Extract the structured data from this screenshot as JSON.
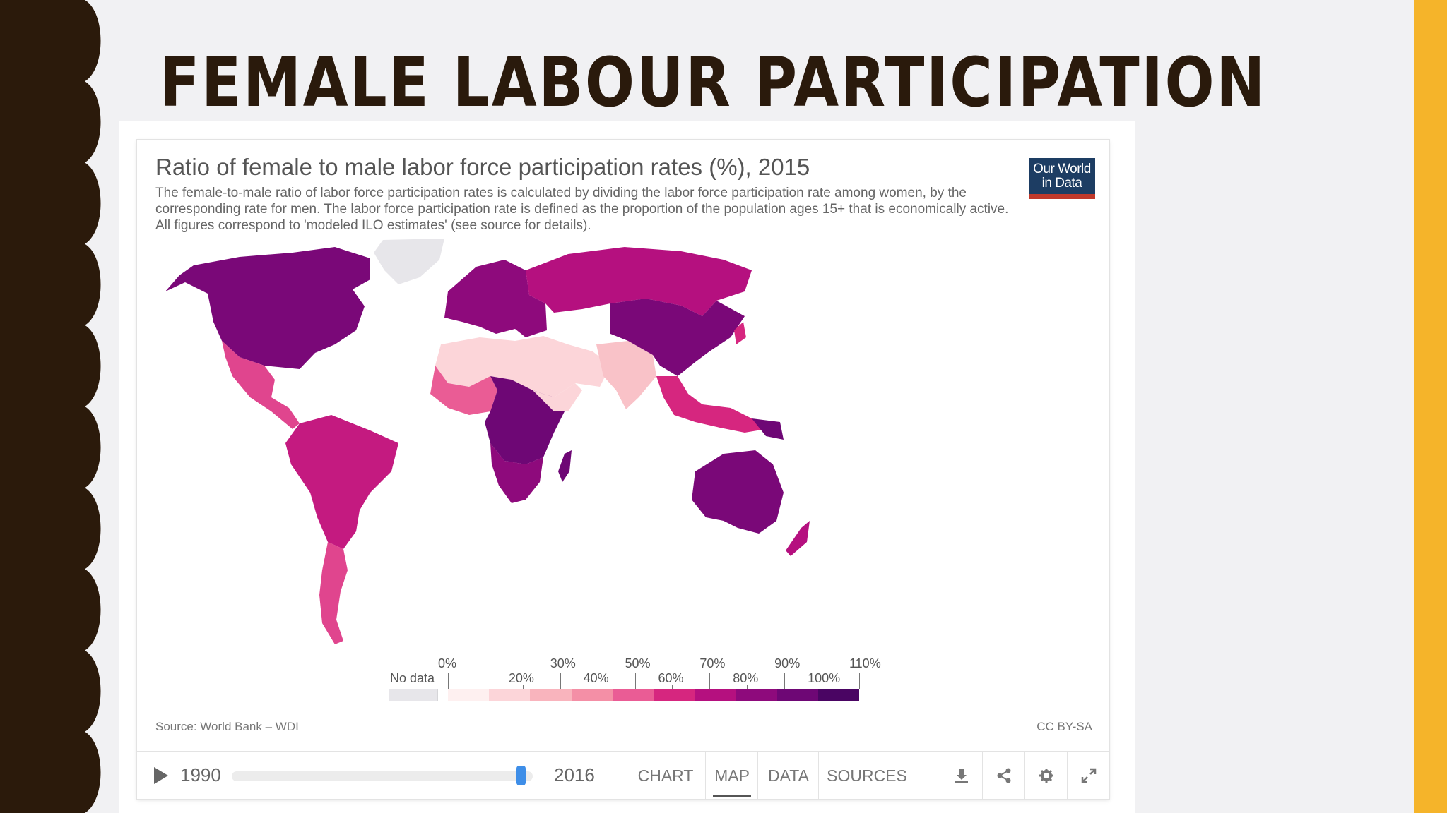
{
  "slide": {
    "title": "FEMALE LABOUR PARTICIPATION"
  },
  "chart": {
    "title": "Ratio of female to male labor force participation rates (%), 2015",
    "subtitle": "The female-to-male ratio of labor force participation rates is calculated by dividing the labor force participation rate among women, by the corresponding rate for men. The labor force participation rate is defined as the proportion of the population ages 15+ that is economically active. All figures correspond to 'modeled ILO estimates' (see source for details).",
    "logo_line1": "Our World",
    "logo_line2": "in Data",
    "source": "Source: World Bank – WDI",
    "license": "CC BY-SA"
  },
  "legend": {
    "no_data_label": "No data",
    "upper_labels": [
      "0%",
      "30%",
      "50%",
      "70%",
      "90%",
      "110%"
    ],
    "lower_labels": [
      "20%",
      "40%",
      "60%",
      "80%",
      "100%"
    ],
    "bins": [
      {
        "range": [
          0,
          20
        ],
        "color": "#fef0f0"
      },
      {
        "range": [
          20,
          30
        ],
        "color": "#fcd5d9"
      },
      {
        "range": [
          30,
          40
        ],
        "color": "#f9b4bd"
      },
      {
        "range": [
          40,
          50
        ],
        "color": "#f48fa6"
      },
      {
        "range": [
          50,
          60
        ],
        "color": "#ea5c95"
      },
      {
        "range": [
          60,
          70
        ],
        "color": "#d6267f"
      },
      {
        "range": [
          70,
          80
        ],
        "color": "#b5107f"
      },
      {
        "range": [
          80,
          90
        ],
        "color": "#8e0a7c"
      },
      {
        "range": [
          90,
          100
        ],
        "color": "#6e0775"
      },
      {
        "range": [
          100,
          110
        ],
        "color": "#4a0563"
      }
    ],
    "no_data_color": "#e7e6ea"
  },
  "controls": {
    "start_year": "1990",
    "end_year": "2016",
    "selected_year_fraction": 0.96,
    "tabs": [
      "CHART",
      "MAP",
      "DATA",
      "SOURCES"
    ],
    "active_tab": "MAP",
    "tools": [
      "download-icon",
      "share-icon",
      "settings-icon",
      "fullscreen-icon"
    ]
  },
  "map": {
    "regions": [
      {
        "name": "North America",
        "ratio_band": "80-90%",
        "color": "#7a0878"
      },
      {
        "name": "Greenland",
        "ratio_band": "no data",
        "color": "#e7e6ea"
      },
      {
        "name": "Mexico & Central America",
        "ratio_band": "50-60%",
        "color": "#e0458e"
      },
      {
        "name": "South America",
        "ratio_band": "60-70%",
        "color": "#c41a80"
      },
      {
        "name": "Southern South America",
        "ratio_band": "50-60%",
        "color": "#e0458e"
      },
      {
        "name": "Europe",
        "ratio_band": "80-90%",
        "color": "#8e0a7c"
      },
      {
        "name": "Russia",
        "ratio_band": "70-80%",
        "color": "#b5107f"
      },
      {
        "name": "North Africa & Middle East",
        "ratio_band": "20-30%",
        "color": "#fcd5d9"
      },
      {
        "name": "South Asia",
        "ratio_band": "30-40%",
        "color": "#f9c2c8"
      },
      {
        "name": "West Africa",
        "ratio_band": "50-60%",
        "color": "#ea5c95"
      },
      {
        "name": "Central & East Africa",
        "ratio_band": "90-100%",
        "color": "#6e0775"
      },
      {
        "name": "Southern Africa",
        "ratio_band": "80-90%",
        "color": "#8e0a7c"
      },
      {
        "name": "China & East Asia",
        "ratio_band": "80-90%",
        "color": "#7a0878"
      },
      {
        "name": "Southeast Asia",
        "ratio_band": "60-70%",
        "color": "#d6267f"
      },
      {
        "name": "Australia",
        "ratio_band": "80-90%",
        "color": "#7a0878"
      }
    ]
  }
}
